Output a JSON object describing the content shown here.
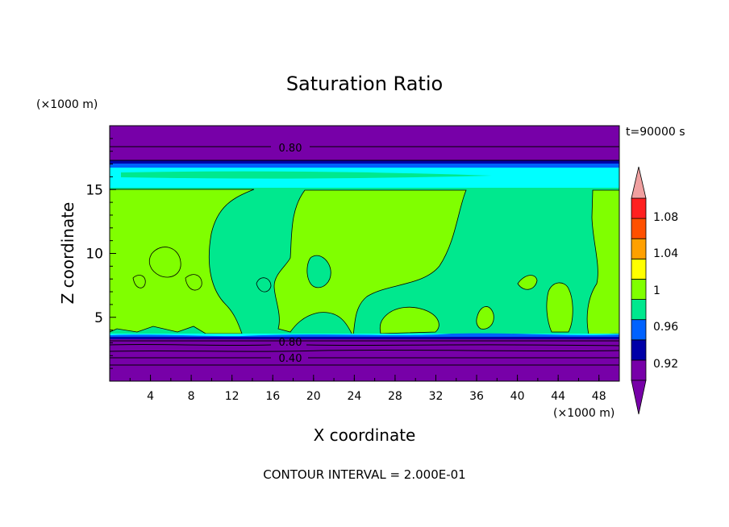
{
  "chart_data": {
    "type": "heatmap",
    "title": "Saturation Ratio",
    "xlabel": "X coordinate",
    "ylabel": "Z coordinate",
    "x_unit": "(×1000 m)",
    "y_unit": "(×1000 m)",
    "time_label": "t=90000 s",
    "footer": "CONTOUR INTERVAL = 2.000E-01",
    "xlim": [
      0,
      50
    ],
    "ylim": [
      0,
      20
    ],
    "x_ticks": [
      "4",
      "8",
      "12",
      "16",
      "20",
      "24",
      "28",
      "32",
      "36",
      "40",
      "44",
      "48"
    ],
    "y_ticks": [
      "5",
      "10",
      "15"
    ],
    "contour_labels": [
      "0.80",
      "0.80",
      "0.40"
    ],
    "colorbar": {
      "labels": [
        "0.92",
        "0.96",
        "1",
        "1.04",
        "1.08"
      ],
      "colors": [
        "#7700a8",
        "#0000a8",
        "#0062ff",
        "#00e88e",
        "#80ff00",
        "#ffff00",
        "#ffa000",
        "#ff5000",
        "#ff2020",
        "#f0a0a0"
      ]
    },
    "colors": {
      "below": "#7700a8",
      "dark_blue": "#0000a8",
      "blue": "#0062ff",
      "cyan": "#00ffff",
      "green": "#00e88e",
      "light_green": "#80ff00"
    }
  }
}
